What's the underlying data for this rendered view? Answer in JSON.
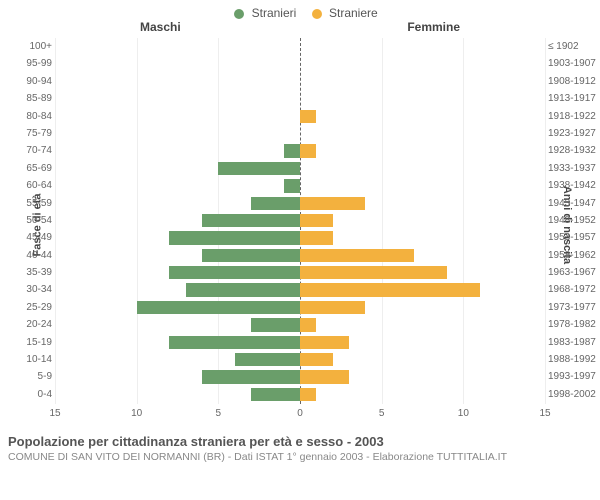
{
  "legend": {
    "male": {
      "label": "Stranieri",
      "color": "#6a9e6a"
    },
    "female": {
      "label": "Straniere",
      "color": "#f3b13e"
    }
  },
  "column_titles": {
    "left": "Maschi",
    "right": "Femmine"
  },
  "y_labels": {
    "left": "Fasce di età",
    "right": "Anni di nascita"
  },
  "x_axis": {
    "max": 15,
    "ticks": [
      15,
      10,
      5,
      0,
      5,
      10,
      15
    ]
  },
  "rows": [
    {
      "age": "100+",
      "years": "≤ 1902",
      "m": 0,
      "f": 0
    },
    {
      "age": "95-99",
      "years": "1903-1907",
      "m": 0,
      "f": 0
    },
    {
      "age": "90-94",
      "years": "1908-1912",
      "m": 0,
      "f": 0
    },
    {
      "age": "85-89",
      "years": "1913-1917",
      "m": 0,
      "f": 0
    },
    {
      "age": "80-84",
      "years": "1918-1922",
      "m": 0,
      "f": 1
    },
    {
      "age": "75-79",
      "years": "1923-1927",
      "m": 0,
      "f": 0
    },
    {
      "age": "70-74",
      "years": "1928-1932",
      "m": 1,
      "f": 1
    },
    {
      "age": "65-69",
      "years": "1933-1937",
      "m": 5,
      "f": 0
    },
    {
      "age": "60-64",
      "years": "1938-1942",
      "m": 1,
      "f": 0
    },
    {
      "age": "55-59",
      "years": "1943-1947",
      "m": 3,
      "f": 4
    },
    {
      "age": "50-54",
      "years": "1948-1952",
      "m": 6,
      "f": 2
    },
    {
      "age": "45-49",
      "years": "1953-1957",
      "m": 8,
      "f": 2
    },
    {
      "age": "40-44",
      "years": "1958-1962",
      "m": 6,
      "f": 7
    },
    {
      "age": "35-39",
      "years": "1963-1967",
      "m": 8,
      "f": 9
    },
    {
      "age": "30-34",
      "years": "1968-1972",
      "m": 7,
      "f": 11
    },
    {
      "age": "25-29",
      "years": "1973-1977",
      "m": 10,
      "f": 4
    },
    {
      "age": "20-24",
      "years": "1978-1982",
      "m": 3,
      "f": 1
    },
    {
      "age": "15-19",
      "years": "1983-1987",
      "m": 8,
      "f": 3
    },
    {
      "age": "10-14",
      "years": "1988-1992",
      "m": 4,
      "f": 2
    },
    {
      "age": "5-9",
      "years": "1993-1997",
      "m": 6,
      "f": 3
    },
    {
      "age": "0-4",
      "years": "1998-2002",
      "m": 3,
      "f": 1
    }
  ],
  "footer": {
    "title": "Popolazione per cittadinanza straniera per età e sesso - 2003",
    "subtitle": "COMUNE DI SAN VITO DEI NORMANNI (BR) - Dati ISTAT 1° gennaio 2003 - Elaborazione TUTTITALIA.IT"
  },
  "style": {
    "background": "#ffffff",
    "grid_color": "#eeeeee",
    "center_line_color": "#666666",
    "text_color": "#666666"
  }
}
